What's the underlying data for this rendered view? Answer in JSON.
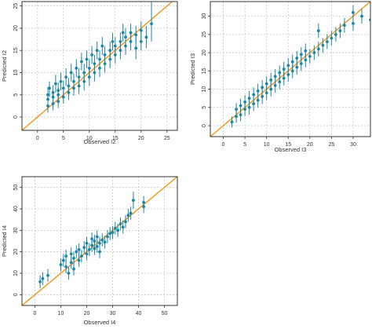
{
  "style": {
    "point_color": "#1a86a8",
    "line_color": "#f0a030",
    "grid_color": "#c8c8c8",
    "frame_color": "#333333"
  },
  "chart_data": [
    {
      "id": "i2",
      "type": "scatter",
      "xlabel": "Observed I2",
      "ylabel": "Predicted I2",
      "xlim": [
        -3,
        27
      ],
      "ylim": [
        -3,
        26
      ],
      "xticks": [
        0,
        5,
        10,
        15,
        20,
        25
      ],
      "yticks": [
        0,
        5,
        10,
        15,
        20,
        25
      ],
      "grid": true,
      "reference_line": "y = x",
      "points": [
        {
          "x": 2,
          "y": 2.5,
          "lo": 1.0,
          "hi": 4.0
        },
        {
          "x": 2,
          "y": 4.0,
          "lo": 2.5,
          "hi": 5.5
        },
        {
          "x": 2,
          "y": 5.0,
          "lo": 3.2,
          "hi": 6.8
        },
        {
          "x": 2.3,
          "y": 6.5,
          "lo": 4.5,
          "hi": 8.0
        },
        {
          "x": 3,
          "y": 3.0,
          "lo": 1.5,
          "hi": 4.5
        },
        {
          "x": 3,
          "y": 4.5,
          "lo": 3.0,
          "hi": 6.0
        },
        {
          "x": 3,
          "y": 5.5,
          "lo": 3.8,
          "hi": 7.2
        },
        {
          "x": 3.5,
          "y": 7.5,
          "lo": 5.5,
          "hi": 9.5
        },
        {
          "x": 4,
          "y": 3.5,
          "lo": 2.0,
          "hi": 5.0
        },
        {
          "x": 4,
          "y": 5.0,
          "lo": 3.5,
          "hi": 6.5
        },
        {
          "x": 4,
          "y": 6.0,
          "lo": 4.2,
          "hi": 7.8
        },
        {
          "x": 4.5,
          "y": 8.0,
          "lo": 6.0,
          "hi": 10.0
        },
        {
          "x": 5,
          "y": 4.5,
          "lo": 3.0,
          "hi": 6.0
        },
        {
          "x": 5,
          "y": 6.5,
          "lo": 4.8,
          "hi": 8.2
        },
        {
          "x": 5.5,
          "y": 9.0,
          "lo": 7.0,
          "hi": 11.0
        },
        {
          "x": 6,
          "y": 5.5,
          "lo": 3.8,
          "hi": 7.2
        },
        {
          "x": 6,
          "y": 7.0,
          "lo": 5.2,
          "hi": 8.8
        },
        {
          "x": 6.5,
          "y": 10.0,
          "lo": 8.0,
          "hi": 12.0
        },
        {
          "x": 7,
          "y": 6.5,
          "lo": 4.8,
          "hi": 8.2
        },
        {
          "x": 7,
          "y": 8.0,
          "lo": 6.2,
          "hi": 9.8
        },
        {
          "x": 7.5,
          "y": 11.0,
          "lo": 9.0,
          "hi": 13.0
        },
        {
          "x": 8,
          "y": 7.0,
          "lo": 5.2,
          "hi": 8.8
        },
        {
          "x": 8,
          "y": 9.0,
          "lo": 7.0,
          "hi": 11.0
        },
        {
          "x": 8.5,
          "y": 12.5,
          "lo": 10.5,
          "hi": 14.5
        },
        {
          "x": 9,
          "y": 8.0,
          "lo": 6.0,
          "hi": 10.0
        },
        {
          "x": 9,
          "y": 10.0,
          "lo": 8.0,
          "hi": 12.0
        },
        {
          "x": 9.5,
          "y": 13.0,
          "lo": 11.0,
          "hi": 15.0
        },
        {
          "x": 10,
          "y": 9.0,
          "lo": 7.0,
          "hi": 11.0
        },
        {
          "x": 10,
          "y": 11.0,
          "lo": 9.0,
          "hi": 13.0
        },
        {
          "x": 10.5,
          "y": 14.0,
          "lo": 12.0,
          "hi": 16.0
        },
        {
          "x": 11,
          "y": 10.0,
          "lo": 8.0,
          "hi": 12.0
        },
        {
          "x": 11,
          "y": 12.0,
          "lo": 10.0,
          "hi": 14.0
        },
        {
          "x": 11.5,
          "y": 15.0,
          "lo": 13.0,
          "hi": 17.0
        },
        {
          "x": 12,
          "y": 11.0,
          "lo": 9.0,
          "hi": 13.0
        },
        {
          "x": 12,
          "y": 13.0,
          "lo": 11.0,
          "hi": 15.0
        },
        {
          "x": 12.5,
          "y": 16.0,
          "lo": 14.0,
          "hi": 18.0
        },
        {
          "x": 13,
          "y": 12.0,
          "lo": 10.0,
          "hi": 14.0
        },
        {
          "x": 13,
          "y": 14.0,
          "lo": 12.0,
          "hi": 16.0
        },
        {
          "x": 14,
          "y": 13.0,
          "lo": 11.0,
          "hi": 15.0
        },
        {
          "x": 14,
          "y": 15.0,
          "lo": 13.0,
          "hi": 17.0
        },
        {
          "x": 14.5,
          "y": 17.0,
          "lo": 15.0,
          "hi": 19.0
        },
        {
          "x": 15,
          "y": 14.0,
          "lo": 12.0,
          "hi": 16.0
        },
        {
          "x": 15,
          "y": 16.0,
          "lo": 14.0,
          "hi": 18.0
        },
        {
          "x": 16,
          "y": 15.0,
          "lo": 13.0,
          "hi": 17.0
        },
        {
          "x": 16,
          "y": 17.0,
          "lo": 15.0,
          "hi": 19.0
        },
        {
          "x": 16.5,
          "y": 19.0,
          "lo": 17.0,
          "hi": 21.0
        },
        {
          "x": 17,
          "y": 16.0,
          "lo": 14.0,
          "hi": 18.0
        },
        {
          "x": 17,
          "y": 18.0,
          "lo": 16.0,
          "hi": 20.0
        },
        {
          "x": 18,
          "y": 17.0,
          "lo": 15.0,
          "hi": 19.0
        },
        {
          "x": 18,
          "y": 19.0,
          "lo": 17.0,
          "hi": 21.0
        },
        {
          "x": 19,
          "y": 15.5,
          "lo": 13.0,
          "hi": 18.0
        },
        {
          "x": 19,
          "y": 18.5,
          "lo": 16.5,
          "hi": 20.5
        },
        {
          "x": 20,
          "y": 17.0,
          "lo": 15.0,
          "hi": 19.0
        },
        {
          "x": 20,
          "y": 19.5,
          "lo": 17.5,
          "hi": 21.5
        },
        {
          "x": 21,
          "y": 18.0,
          "lo": 15.5,
          "hi": 20.5
        },
        {
          "x": 22,
          "y": 21.0,
          "lo": 17.0,
          "hi": 26.0
        }
      ]
    },
    {
      "id": "i3",
      "type": "scatter",
      "xlabel": "Observed I3",
      "ylabel": "Predicted I3",
      "xlim": [
        -3,
        34
      ],
      "ylim": [
        -3,
        34
      ],
      "xticks": [
        0,
        5,
        10,
        15,
        20,
        25,
        30
      ],
      "yticks": [
        0,
        5,
        10,
        15,
        20,
        25,
        30
      ],
      "grid": true,
      "reference_line": "y = x",
      "points": [
        {
          "x": 2,
          "y": 1.0,
          "lo": -0.5,
          "hi": 2.5
        },
        {
          "x": 3,
          "y": 2.5,
          "lo": 0.8,
          "hi": 4.2
        },
        {
          "x": 3,
          "y": 4.5,
          "lo": 2.8,
          "hi": 6.2
        },
        {
          "x": 4,
          "y": 3.0,
          "lo": 1.2,
          "hi": 4.8
        },
        {
          "x": 4,
          "y": 5.5,
          "lo": 3.6,
          "hi": 7.4
        },
        {
          "x": 5,
          "y": 4.5,
          "lo": 2.6,
          "hi": 6.4
        },
        {
          "x": 5,
          "y": 6.5,
          "lo": 4.6,
          "hi": 8.4
        },
        {
          "x": 6,
          "y": 5.0,
          "lo": 3.0,
          "hi": 7.0
        },
        {
          "x": 6,
          "y": 7.5,
          "lo": 5.5,
          "hi": 9.5
        },
        {
          "x": 7,
          "y": 6.0,
          "lo": 4.0,
          "hi": 8.0
        },
        {
          "x": 7,
          "y": 8.5,
          "lo": 6.5,
          "hi": 10.5
        },
        {
          "x": 8,
          "y": 7.0,
          "lo": 5.0,
          "hi": 9.0
        },
        {
          "x": 8,
          "y": 9.5,
          "lo": 7.5,
          "hi": 11.5
        },
        {
          "x": 9,
          "y": 8.0,
          "lo": 6.0,
          "hi": 10.0
        },
        {
          "x": 9,
          "y": 10.5,
          "lo": 8.5,
          "hi": 12.5
        },
        {
          "x": 10,
          "y": 9.0,
          "lo": 7.0,
          "hi": 11.0
        },
        {
          "x": 10,
          "y": 11.5,
          "lo": 9.5,
          "hi": 13.5
        },
        {
          "x": 11,
          "y": 10.0,
          "lo": 8.0,
          "hi": 12.0
        },
        {
          "x": 11,
          "y": 12.5,
          "lo": 10.5,
          "hi": 14.5
        },
        {
          "x": 12,
          "y": 11.0,
          "lo": 9.0,
          "hi": 13.0
        },
        {
          "x": 12,
          "y": 13.5,
          "lo": 11.5,
          "hi": 15.5
        },
        {
          "x": 13,
          "y": 12.0,
          "lo": 10.0,
          "hi": 14.0
        },
        {
          "x": 13,
          "y": 14.5,
          "lo": 12.5,
          "hi": 16.5
        },
        {
          "x": 14,
          "y": 13.0,
          "lo": 11.0,
          "hi": 15.0
        },
        {
          "x": 14,
          "y": 15.5,
          "lo": 13.5,
          "hi": 17.5
        },
        {
          "x": 15,
          "y": 14.0,
          "lo": 12.0,
          "hi": 16.0
        },
        {
          "x": 15,
          "y": 16.5,
          "lo": 14.5,
          "hi": 18.5
        },
        {
          "x": 16,
          "y": 15.0,
          "lo": 13.0,
          "hi": 17.0
        },
        {
          "x": 16,
          "y": 17.5,
          "lo": 15.5,
          "hi": 19.5
        },
        {
          "x": 17,
          "y": 16.0,
          "lo": 14.0,
          "hi": 18.0
        },
        {
          "x": 17,
          "y": 18.5,
          "lo": 16.5,
          "hi": 20.5
        },
        {
          "x": 18,
          "y": 17.0,
          "lo": 15.0,
          "hi": 19.0
        },
        {
          "x": 18,
          "y": 19.5,
          "lo": 17.5,
          "hi": 21.5
        },
        {
          "x": 19,
          "y": 18.0,
          "lo": 16.0,
          "hi": 20.0
        },
        {
          "x": 19,
          "y": 20.5,
          "lo": 18.5,
          "hi": 22.5
        },
        {
          "x": 20,
          "y": 19.0,
          "lo": 17.0,
          "hi": 21.0
        },
        {
          "x": 21,
          "y": 20.0,
          "lo": 18.0,
          "hi": 22.0
        },
        {
          "x": 22,
          "y": 21.0,
          "lo": 19.0,
          "hi": 23.0
        },
        {
          "x": 22,
          "y": 26.0,
          "lo": 24.0,
          "hi": 28.0
        },
        {
          "x": 23,
          "y": 22.0,
          "lo": 20.0,
          "hi": 24.0
        },
        {
          "x": 24,
          "y": 23.0,
          "lo": 21.0,
          "hi": 25.0
        },
        {
          "x": 25,
          "y": 24.0,
          "lo": 22.0,
          "hi": 26.0
        },
        {
          "x": 26,
          "y": 25.0,
          "lo": 23.0,
          "hi": 27.0
        },
        {
          "x": 27,
          "y": 26.0,
          "lo": 24.0,
          "hi": 28.0
        },
        {
          "x": 28,
          "y": 27.5,
          "lo": 25.5,
          "hi": 29.5
        },
        {
          "x": 30,
          "y": 28.0,
          "lo": 26.0,
          "hi": 30.0
        },
        {
          "x": 30,
          "y": 31.0,
          "lo": 29.0,
          "hi": 33.0
        },
        {
          "x": 32,
          "y": 30.0,
          "lo": 28.0,
          "hi": 32.0
        },
        {
          "x": 34,
          "y": 29.0,
          "lo": 27.0,
          "hi": 31.0
        }
      ]
    },
    {
      "id": "i4",
      "type": "scatter",
      "xlabel": "Observed I4",
      "ylabel": "Predicted I4",
      "xlim": [
        -5,
        55
      ],
      "ylim": [
        -5,
        55
      ],
      "xticks": [
        0,
        10,
        20,
        30,
        40,
        50
      ],
      "yticks": [
        0,
        10,
        20,
        30,
        40,
        50
      ],
      "grid": true,
      "reference_line": "y = x",
      "points": [
        {
          "x": 2,
          "y": 6.0,
          "lo": 3.0,
          "hi": 9.0
        },
        {
          "x": 3,
          "y": 7.5,
          "lo": 4.5,
          "hi": 10.5
        },
        {
          "x": 5,
          "y": 9.0,
          "lo": 6.0,
          "hi": 12.0
        },
        {
          "x": 10,
          "y": 14.0,
          "lo": 11.0,
          "hi": 17.0
        },
        {
          "x": 11,
          "y": 16.0,
          "lo": 13.0,
          "hi": 19.0
        },
        {
          "x": 12,
          "y": 13.0,
          "lo": 10.0,
          "hi": 16.0
        },
        {
          "x": 12,
          "y": 18.0,
          "lo": 15.0,
          "hi": 21.0
        },
        {
          "x": 13,
          "y": 10.0,
          "lo": 7.0,
          "hi": 13.0
        },
        {
          "x": 14,
          "y": 15.0,
          "lo": 12.0,
          "hi": 18.0
        },
        {
          "x": 14,
          "y": 19.0,
          "lo": 16.0,
          "hi": 22.0
        },
        {
          "x": 15,
          "y": 12.0,
          "lo": 9.0,
          "hi": 15.0
        },
        {
          "x": 15,
          "y": 17.0,
          "lo": 14.0,
          "hi": 20.0
        },
        {
          "x": 16,
          "y": 20.0,
          "lo": 17.0,
          "hi": 23.0
        },
        {
          "x": 17,
          "y": 16.0,
          "lo": 13.0,
          "hi": 19.0
        },
        {
          "x": 17,
          "y": 21.0,
          "lo": 18.0,
          "hi": 24.0
        },
        {
          "x": 18,
          "y": 18.0,
          "lo": 15.0,
          "hi": 21.0
        },
        {
          "x": 19,
          "y": 22.0,
          "lo": 19.0,
          "hi": 25.0
        },
        {
          "x": 20,
          "y": 19.0,
          "lo": 16.0,
          "hi": 22.0
        },
        {
          "x": 20,
          "y": 24.0,
          "lo": 21.0,
          "hi": 27.0
        },
        {
          "x": 21,
          "y": 21.0,
          "lo": 18.0,
          "hi": 24.0
        },
        {
          "x": 22,
          "y": 23.0,
          "lo": 20.0,
          "hi": 26.0
        },
        {
          "x": 22,
          "y": 26.0,
          "lo": 23.0,
          "hi": 29.0
        },
        {
          "x": 23,
          "y": 21.5,
          "lo": 18.5,
          "hi": 24.5
        },
        {
          "x": 23,
          "y": 25.0,
          "lo": 22.0,
          "hi": 28.0
        },
        {
          "x": 24,
          "y": 22.5,
          "lo": 19.5,
          "hi": 25.5
        },
        {
          "x": 24,
          "y": 27.0,
          "lo": 24.0,
          "hi": 30.0
        },
        {
          "x": 25,
          "y": 24.0,
          "lo": 21.0,
          "hi": 27.0
        },
        {
          "x": 25,
          "y": 20.0,
          "lo": 17.0,
          "hi": 23.0
        },
        {
          "x": 26,
          "y": 25.5,
          "lo": 22.5,
          "hi": 28.5
        },
        {
          "x": 27,
          "y": 24.5,
          "lo": 21.5,
          "hi": 27.5
        },
        {
          "x": 28,
          "y": 27.0,
          "lo": 24.0,
          "hi": 30.0
        },
        {
          "x": 29,
          "y": 28.5,
          "lo": 25.5,
          "hi": 31.5
        },
        {
          "x": 30,
          "y": 29.0,
          "lo": 26.0,
          "hi": 32.0
        },
        {
          "x": 31,
          "y": 31.0,
          "lo": 28.0,
          "hi": 34.0
        },
        {
          "x": 32,
          "y": 30.0,
          "lo": 27.0,
          "hi": 33.0
        },
        {
          "x": 33,
          "y": 33.0,
          "lo": 30.0,
          "hi": 36.0
        },
        {
          "x": 34,
          "y": 31.5,
          "lo": 28.5,
          "hi": 34.5
        },
        {
          "x": 35,
          "y": 34.0,
          "lo": 31.0,
          "hi": 37.0
        },
        {
          "x": 36,
          "y": 37.0,
          "lo": 34.0,
          "hi": 40.0
        },
        {
          "x": 37,
          "y": 38.0,
          "lo": 35.0,
          "hi": 41.0
        },
        {
          "x": 38,
          "y": 44.0,
          "lo": 40.0,
          "hi": 48.0
        },
        {
          "x": 42,
          "y": 41.0,
          "lo": 38.0,
          "hi": 44.0
        },
        {
          "x": 42,
          "y": 43.0,
          "lo": 40.0,
          "hi": 46.0
        }
      ]
    }
  ]
}
